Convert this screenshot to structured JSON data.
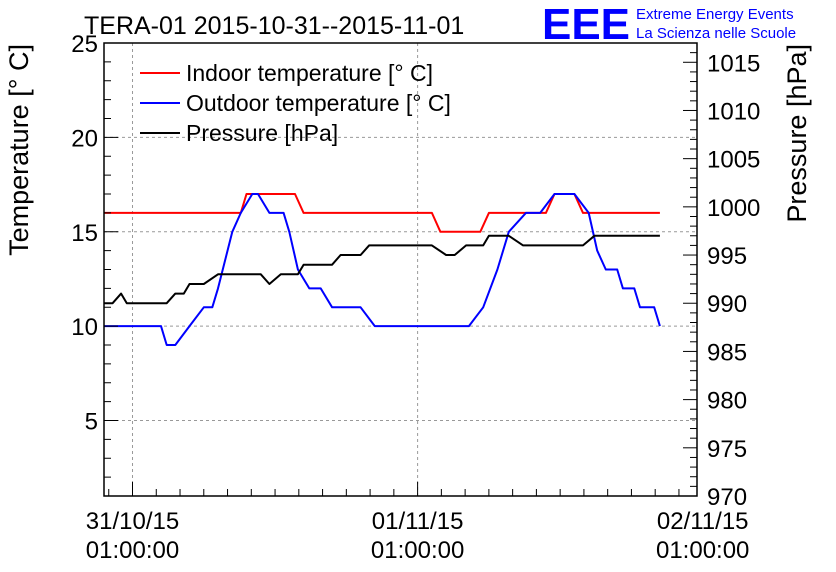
{
  "chart_data": {
    "type": "line",
    "title": "TERA-01 2015-10-31--2015-11-01",
    "ylabel": "Temperature [° C]",
    "y2label": "Pressure [hPa]",
    "xlabel": "",
    "ylim": [
      1,
      25
    ],
    "y2lim": [
      970,
      1017
    ],
    "xlim": [
      -0.1,
      1.98
    ],
    "grid": true,
    "legend": "top-left",
    "yticks": [
      {
        "value": 5,
        "label": "5"
      },
      {
        "value": 10,
        "label": "10"
      },
      {
        "value": 15,
        "label": "15"
      },
      {
        "value": 20,
        "label": "20"
      },
      {
        "value": 25,
        "label": "25"
      }
    ],
    "y2ticks": [
      {
        "value": 970,
        "label": "970"
      },
      {
        "value": 975,
        "label": "975"
      },
      {
        "value": 980,
        "label": "980"
      },
      {
        "value": 985,
        "label": "985"
      },
      {
        "value": 990,
        "label": "990"
      },
      {
        "value": 995,
        "label": "995"
      },
      {
        "value": 1000,
        "label": "1000"
      },
      {
        "value": 1005,
        "label": "1005"
      },
      {
        "value": 1010,
        "label": "1010"
      },
      {
        "value": 1015,
        "label": "1015"
      }
    ],
    "xticks": [
      {
        "value": 0,
        "date": "31/10/15",
        "time": "01:00:00"
      },
      {
        "value": 1,
        "date": "01/11/15",
        "time": "01:00:00"
      },
      {
        "value": 2,
        "date": "02/11/15",
        "time": "01:00:00"
      }
    ],
    "series": [
      {
        "name": "Indoor temperature [° C]",
        "color": "#ff0000",
        "axis": "left",
        "points": [
          [
            -0.1,
            16
          ],
          [
            0.38,
            16
          ],
          [
            0.4,
            17
          ],
          [
            0.57,
            17
          ],
          [
            0.6,
            16
          ],
          [
            1.05,
            16
          ],
          [
            1.08,
            15
          ],
          [
            1.22,
            15
          ],
          [
            1.25,
            16
          ],
          [
            1.45,
            16
          ],
          [
            1.48,
            17
          ],
          [
            1.55,
            17
          ],
          [
            1.58,
            16
          ],
          [
            1.85,
            16
          ]
        ]
      },
      {
        "name": "Outdoor temperature [° C]",
        "color": "#0000ff",
        "axis": "left",
        "points": [
          [
            -0.1,
            10
          ],
          [
            0.1,
            10
          ],
          [
            0.12,
            9
          ],
          [
            0.15,
            9
          ],
          [
            0.2,
            10
          ],
          [
            0.25,
            11
          ],
          [
            0.28,
            11
          ],
          [
            0.3,
            12
          ],
          [
            0.35,
            15
          ],
          [
            0.38,
            16
          ],
          [
            0.42,
            17
          ],
          [
            0.44,
            17
          ],
          [
            0.48,
            16
          ],
          [
            0.53,
            16
          ],
          [
            0.55,
            15
          ],
          [
            0.58,
            13
          ],
          [
            0.62,
            12
          ],
          [
            0.66,
            12
          ],
          [
            0.7,
            11
          ],
          [
            0.8,
            11
          ],
          [
            0.85,
            10
          ],
          [
            1.18,
            10
          ],
          [
            1.23,
            11
          ],
          [
            1.28,
            13
          ],
          [
            1.32,
            15
          ],
          [
            1.38,
            16
          ],
          [
            1.43,
            16
          ],
          [
            1.48,
            17
          ],
          [
            1.55,
            17
          ],
          [
            1.6,
            16
          ],
          [
            1.63,
            14
          ],
          [
            1.66,
            13
          ],
          [
            1.7,
            13
          ],
          [
            1.72,
            12
          ],
          [
            1.76,
            12
          ],
          [
            1.78,
            11
          ],
          [
            1.83,
            11
          ],
          [
            1.85,
            10
          ]
        ]
      },
      {
        "name": "Pressure [hPa]",
        "color": "#000000",
        "axis": "right",
        "points": [
          [
            -0.1,
            990
          ],
          [
            -0.07,
            990
          ],
          [
            -0.04,
            991
          ],
          [
            -0.02,
            990
          ],
          [
            0.12,
            990
          ],
          [
            0.15,
            991
          ],
          [
            0.18,
            991
          ],
          [
            0.2,
            992
          ],
          [
            0.25,
            992
          ],
          [
            0.3,
            993
          ],
          [
            0.45,
            993
          ],
          [
            0.48,
            992
          ],
          [
            0.52,
            993
          ],
          [
            0.58,
            993
          ],
          [
            0.6,
            994
          ],
          [
            0.7,
            994
          ],
          [
            0.73,
            995
          ],
          [
            0.8,
            995
          ],
          [
            0.83,
            996
          ],
          [
            1.05,
            996
          ],
          [
            1.1,
            995
          ],
          [
            1.13,
            995
          ],
          [
            1.17,
            996
          ],
          [
            1.23,
            996
          ],
          [
            1.25,
            997
          ],
          [
            1.32,
            997
          ],
          [
            1.37,
            996
          ],
          [
            1.58,
            996
          ],
          [
            1.62,
            997
          ],
          [
            1.85,
            997
          ]
        ]
      }
    ]
  },
  "logo": {
    "letters": "EEE",
    "line1": "Extreme Energy Events",
    "line2": "La Scienza nelle Scuole",
    "color": "#0000ff"
  }
}
